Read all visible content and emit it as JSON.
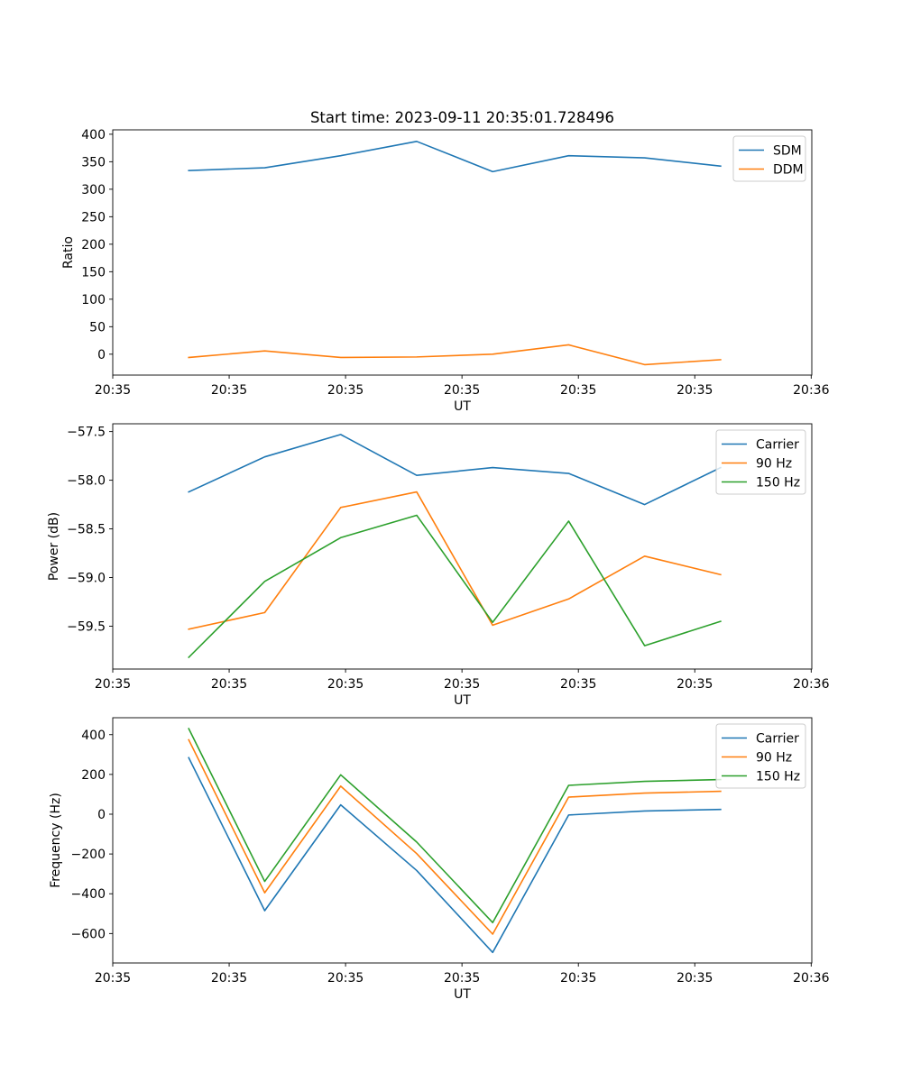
{
  "chart_data": [
    {
      "type": "line",
      "title": "Start time: 2023-09-11 20:35:01.728496",
      "xlabel": "UT",
      "ylabel": "Ratio",
      "x": [
        0.5,
        1,
        1.5,
        2,
        2.5,
        3,
        3.5,
        4
      ],
      "xlim": [
        0,
        4.6
      ],
      "x_ticks": [
        0,
        0.766,
        1.532,
        2.298,
        3.064,
        3.83,
        4.596
      ],
      "x_tick_labels": [
        "20:35",
        "20:35",
        "20:35",
        "20:35",
        "20:35",
        "20:35",
        "20:36"
      ],
      "ylim": [
        -38,
        408
      ],
      "y_ticks": [
        0,
        50,
        100,
        150,
        200,
        250,
        300,
        350,
        400
      ],
      "y_tick_labels": [
        "0",
        "50",
        "100",
        "150",
        "200",
        "250",
        "300",
        "350",
        "400"
      ],
      "legend_position": "top-right",
      "series": [
        {
          "name": "SDM",
          "color": "#1f77b4",
          "values": [
            334,
            339,
            361,
            387,
            332,
            361,
            357,
            342
          ]
        },
        {
          "name": "DDM",
          "color": "#ff7f0e",
          "values": [
            -6,
            6,
            -6,
            -5,
            0,
            17,
            -19,
            -10
          ]
        }
      ]
    },
    {
      "type": "line",
      "xlabel": "UT",
      "ylabel": "Power (dB)",
      "x": [
        0.5,
        1,
        1.5,
        2,
        2.5,
        3,
        3.5,
        4
      ],
      "xlim": [
        0,
        4.6
      ],
      "x_ticks": [
        0,
        0.766,
        1.532,
        2.298,
        3.064,
        3.83,
        4.596
      ],
      "x_tick_labels": [
        "20:35",
        "20:35",
        "20:35",
        "20:35",
        "20:35",
        "20:35",
        "20:36"
      ],
      "ylim": [
        -59.94,
        -57.42
      ],
      "y_ticks": [
        -59.5,
        -59.0,
        -58.5,
        -58.0,
        -57.5
      ],
      "y_tick_labels": [
        "−59.5",
        "−59.0",
        "−58.5",
        "−58.0",
        "−57.5"
      ],
      "legend_position": "top-right",
      "series": [
        {
          "name": "Carrier",
          "color": "#1f77b4",
          "values": [
            -58.12,
            -57.76,
            -57.53,
            -57.95,
            -57.87,
            -57.93,
            -58.25,
            -57.87
          ]
        },
        {
          "name": "90 Hz",
          "color": "#ff7f0e",
          "values": [
            -59.53,
            -59.36,
            -58.28,
            -58.12,
            -59.49,
            -59.22,
            -58.78,
            -58.97
          ]
        },
        {
          "name": "150 Hz",
          "color": "#2ca02c",
          "values": [
            -59.82,
            -59.04,
            -58.59,
            -58.36,
            -59.46,
            -58.42,
            -59.7,
            -59.45
          ]
        }
      ]
    },
    {
      "type": "line",
      "xlabel": "UT",
      "ylabel": "Frequency (Hz)",
      "x": [
        0.5,
        1,
        1.5,
        2,
        2.5,
        3,
        3.5,
        4
      ],
      "xlim": [
        0,
        4.6
      ],
      "x_ticks": [
        0,
        0.766,
        1.532,
        2.298,
        3.064,
        3.83,
        4.596
      ],
      "x_tick_labels": [
        "20:35",
        "20:35",
        "20:35",
        "20:35",
        "20:35",
        "20:35",
        "20:36"
      ],
      "ylim": [
        -748,
        485
      ],
      "y_ticks": [
        -600,
        -400,
        -200,
        0,
        200,
        400
      ],
      "y_tick_labels": [
        "−600",
        "−400",
        "−200",
        "0",
        "200",
        "400"
      ],
      "legend_position": "top-right",
      "series": [
        {
          "name": "Carrier",
          "color": "#1f77b4",
          "values": [
            284,
            -485,
            47,
            -283,
            -695,
            -4,
            16,
            24
          ]
        },
        {
          "name": "90 Hz",
          "color": "#ff7f0e",
          "values": [
            374,
            -395,
            141,
            -198,
            -603,
            86,
            106,
            115
          ]
        },
        {
          "name": "150 Hz",
          "color": "#2ca02c",
          "values": [
            430,
            -338,
            198,
            -140,
            -545,
            145,
            165,
            174
          ]
        }
      ]
    }
  ]
}
